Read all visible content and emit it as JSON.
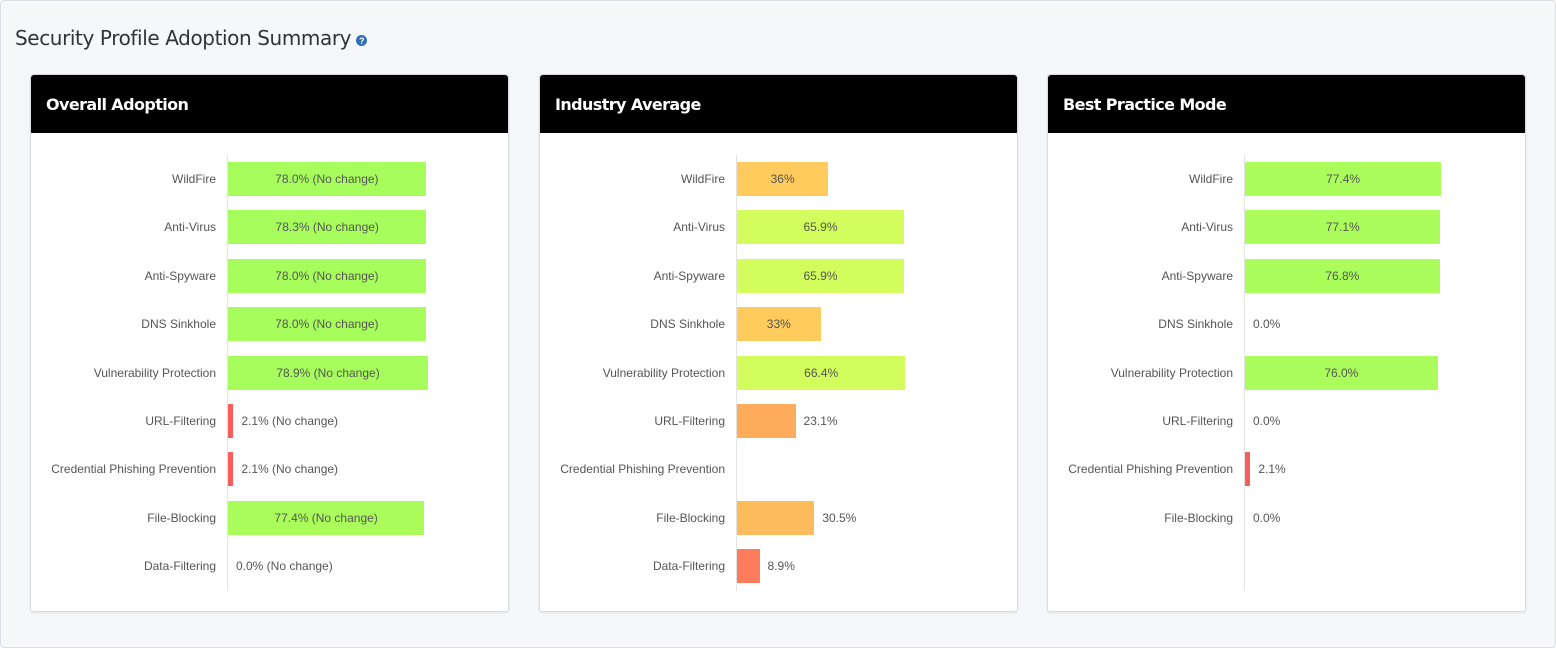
{
  "page": {
    "title": "Security Profile Adoption Summary",
    "help_icon": "question-circle-icon"
  },
  "colors": {
    "green": "#a6fd5c",
    "lime": "#d2fd5c",
    "yellow": "#fecb5c",
    "orange": "#feab5c",
    "salmon": "#fe7c5c",
    "red": "#fe5c5c",
    "header_bg": "#000000"
  },
  "chart_data": [
    {
      "type": "bar",
      "orientation": "horizontal",
      "title": "Overall Adoption",
      "xlim": [
        0,
        100
      ],
      "unit": "%",
      "categories": [
        "WildFire",
        "Anti-Virus",
        "Anti-Spyware",
        "DNS Sinkhole",
        "Vulnerability Protection",
        "URL-Filtering",
        "Credential Phishing Prevention",
        "File-Blocking",
        "Data-Filtering"
      ],
      "values": [
        78.0,
        78.3,
        78.0,
        78.0,
        78.9,
        2.1,
        2.1,
        77.4,
        0.0
      ],
      "labels": [
        "78.0% (No change)",
        "78.3% (No change)",
        "78.0% (No change)",
        "78.0% (No change)",
        "78.9% (No change)",
        "2.1% (No change)",
        "2.1% (No change)",
        "77.4% (No change)",
        "0.0% (No change)"
      ],
      "bar_colors": [
        "#a6fd5c",
        "#a6fd5c",
        "#a6fd5c",
        "#a6fd5c",
        "#a6fd5c",
        "#fe5c5c",
        "#fe5c5c",
        "#abfd5c",
        "#fe5c5c"
      ]
    },
    {
      "type": "bar",
      "orientation": "horizontal",
      "title": "Industry Average",
      "xlim": [
        0,
        100
      ],
      "unit": "%",
      "categories": [
        "WildFire",
        "Anti-Virus",
        "Anti-Spyware",
        "DNS Sinkhole",
        "Vulnerability Protection",
        "URL-Filtering",
        "Credential Phishing Prevention",
        "File-Blocking",
        "Data-Filtering"
      ],
      "values": [
        36,
        65.9,
        65.9,
        33,
        66.4,
        23.1,
        null,
        30.5,
        8.9
      ],
      "labels": [
        "36%",
        "65.9%",
        "65.9%",
        "33%",
        "66.4%",
        "23.1%",
        "",
        "30.5%",
        "8.9%"
      ],
      "bar_colors": [
        "#fecb5c",
        "#d2fd5c",
        "#d2fd5c",
        "#fecb5c",
        "#d2fd5c",
        "#feab5c",
        "#ffffff",
        "#febb5c",
        "#fe7c5c"
      ]
    },
    {
      "type": "bar",
      "orientation": "horizontal",
      "title": "Best Practice Mode",
      "xlim": [
        0,
        100
      ],
      "unit": "%",
      "categories": [
        "WildFire",
        "Anti-Virus",
        "Anti-Spyware",
        "DNS Sinkhole",
        "Vulnerability Protection",
        "URL-Filtering",
        "Credential Phishing Prevention",
        "File-Blocking"
      ],
      "values": [
        77.4,
        77.1,
        76.8,
        0.0,
        76.0,
        0.0,
        2.1,
        0.0
      ],
      "labels": [
        "77.4%",
        "77.1%",
        "76.8%",
        "0.0%",
        "76.0%",
        "0.0%",
        "2.1%",
        "0.0%"
      ],
      "bar_colors": [
        "#abfd5c",
        "#abfd5c",
        "#abfd5c",
        "#fe5c5c",
        "#abfd5c",
        "#fe5c5c",
        "#fe5c5c",
        "#fe5c5c"
      ]
    }
  ]
}
